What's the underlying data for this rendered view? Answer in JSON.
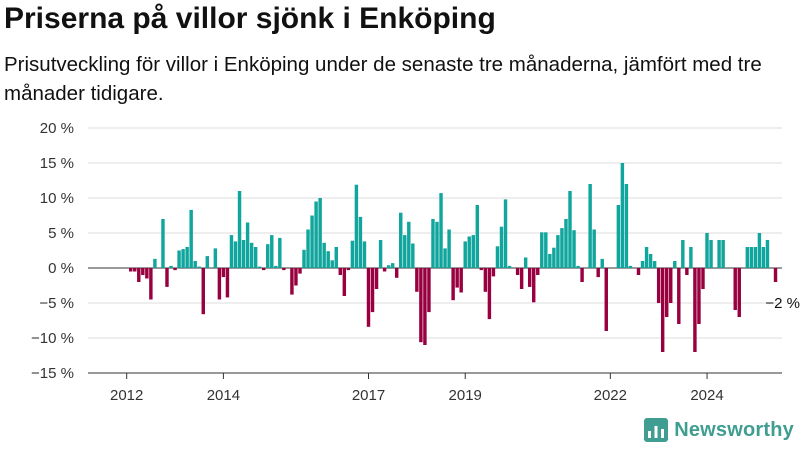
{
  "title": "Priserna på villor sjönk i Enköping",
  "subtitle": "Prisutveckling för villor i Enköping under de senaste tre månaderna, jämfört med tre månader tidigare.",
  "brand": {
    "name": "Newsworthy",
    "logo_icon": "newsworthy-logo-icon",
    "color": "#3f9e91"
  },
  "colors": {
    "positive": "#10a59d",
    "negative": "#98003f",
    "grid": "#dddddd"
  },
  "chart_data": {
    "type": "bar",
    "title": "Priserna på villor sjönk i Enköping",
    "subtitle": "Prisutveckling för villor i Enköping under de senaste tre månaderna, jämfört med tre månader tidigare.",
    "xlabel": "",
    "ylabel": "",
    "ylim": [
      -15,
      20
    ],
    "xlim": [
      2011.2,
      2025.55
    ],
    "y_ticks": [
      20,
      15,
      10,
      5,
      0,
      -5,
      -10,
      -15
    ],
    "y_tick_labels": [
      "20 %",
      "15 %",
      "10 %",
      "5 %",
      "0 %",
      "−5 %",
      "−10 %",
      "−15 %"
    ],
    "x_ticks": [
      2012,
      2014,
      2017,
      2019,
      2022,
      2024
    ],
    "x_tick_labels": [
      "2012",
      "2014",
      "2017",
      "2019",
      "2022",
      "2024"
    ],
    "grid": true,
    "x_start": 2012.0,
    "x_step": 0.08333,
    "values": [
      0,
      -0.5,
      -0.5,
      -2,
      -1,
      -1.5,
      -4.5,
      1.3,
      0,
      7,
      -2.7,
      0.3,
      -0.3,
      2.5,
      2.7,
      3,
      8.3,
      1,
      0.2,
      -6.6,
      1.7,
      0,
      2.8,
      -4.5,
      -1.3,
      -4.2,
      4.7,
      3.8,
      11,
      4,
      6.5,
      3.6,
      3,
      0.2,
      -0.3,
      3.4,
      4.7,
      0.3,
      4.3,
      -0.3,
      0,
      -3.8,
      -2.5,
      -0.8,
      2.6,
      5.5,
      7.5,
      9.5,
      10,
      3.6,
      2.4,
      1.1,
      3,
      -1,
      -4,
      -0.3,
      3.9,
      11.9,
      7.3,
      3.8,
      -8.4,
      -6.3,
      -3,
      4,
      -0.5,
      0.4,
      0.7,
      -1.4,
      7.9,
      4.7,
      6.6,
      3.5,
      -3.4,
      -10.6,
      -11,
      -6.3,
      7,
      6.6,
      10.7,
      2.8,
      5.5,
      -4.6,
      -2.8,
      -3.5,
      3.8,
      4.5,
      4.7,
      9,
      -0.3,
      -3.4,
      -7.3,
      -1.2,
      3.1,
      5.9,
      9.8,
      0.3,
      0,
      -1,
      -3,
      1.5,
      -2.7,
      -4.9,
      -1,
      5.1,
      5.1,
      2,
      2.9,
      4.7,
      5.7,
      7,
      11,
      5.4,
      0.3,
      -2,
      0,
      12,
      5.5,
      -1.3,
      1.3,
      -9,
      0,
      0,
      9,
      15,
      12,
      0.3,
      0,
      -1,
      1,
      3,
      2,
      1,
      -5,
      -12,
      -7,
      -5,
      1,
      -8,
      4,
      -1,
      3,
      -12,
      -8,
      -3,
      5,
      4,
      0,
      4,
      4,
      0,
      0,
      -6,
      -7,
      0,
      3,
      3,
      3,
      5,
      3,
      4,
      0,
      -2
    ],
    "annotations": [
      {
        "label": "−2 %",
        "x": 2025.0,
        "y": -2
      }
    ]
  }
}
